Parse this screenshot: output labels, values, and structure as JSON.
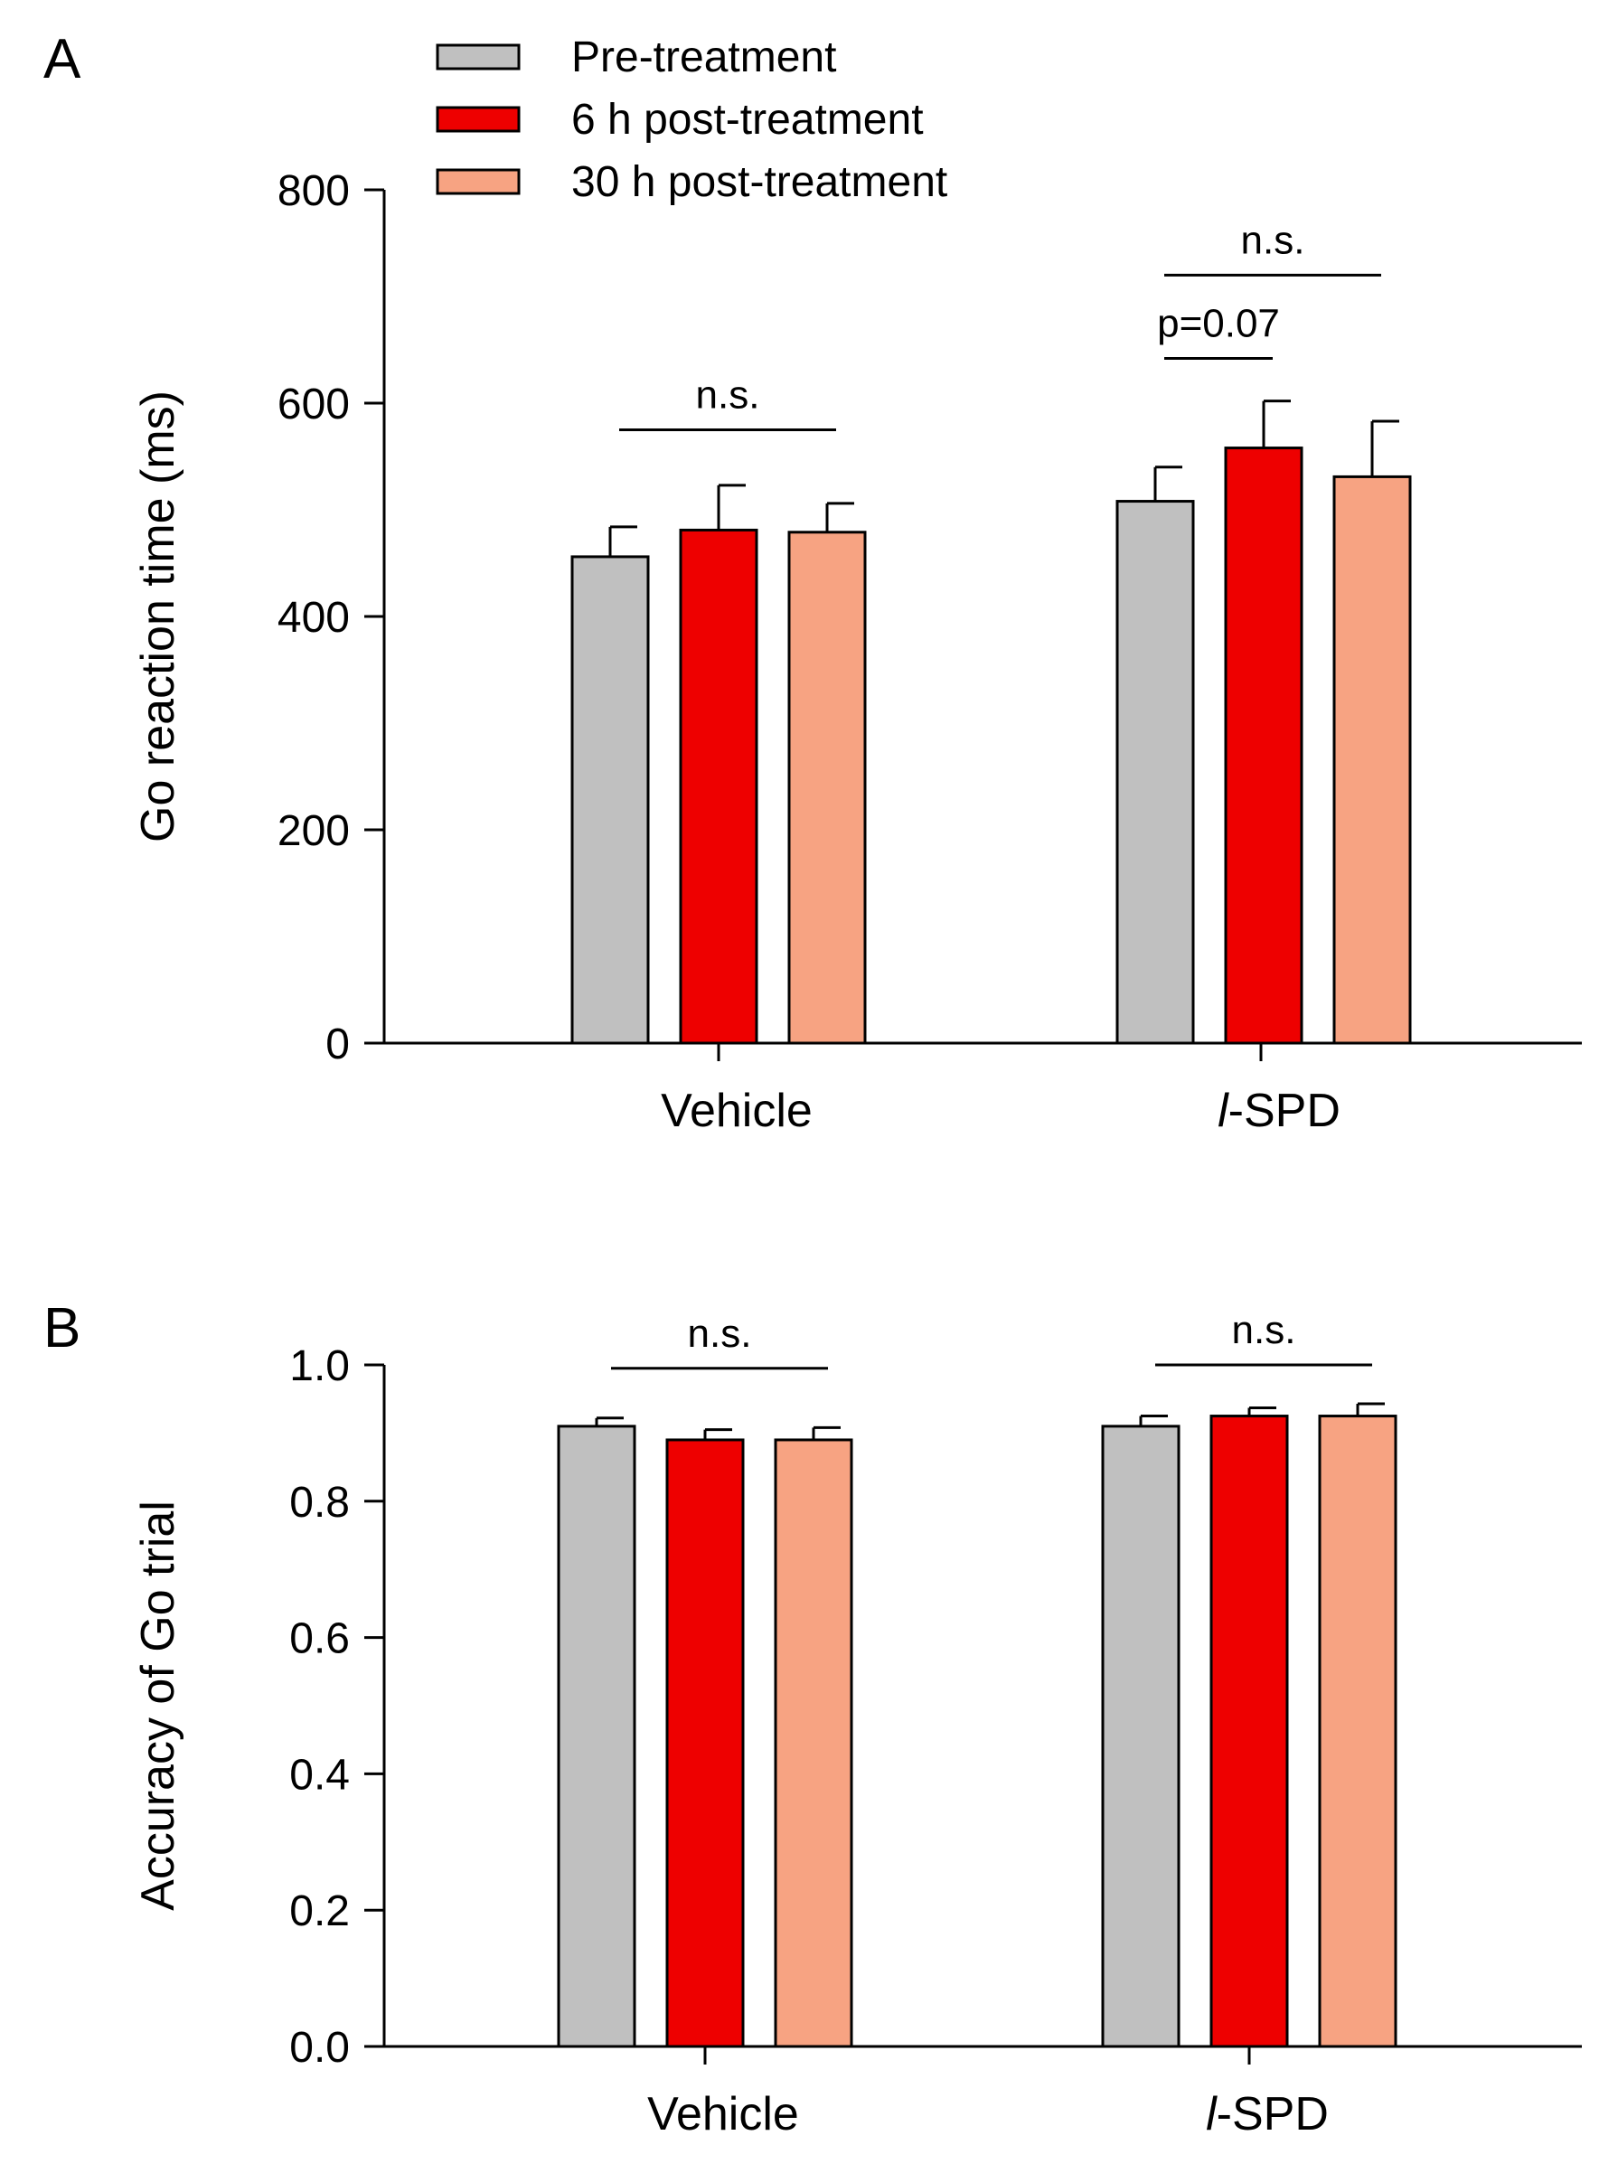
{
  "legend": [
    {
      "name": "Pre-treatment",
      "color": "#c0c0c0"
    },
    {
      "name": "6 h post-treatment",
      "color": "#ee0000"
    },
    {
      "name": "30 h post-treatment",
      "color": "#f7a382"
    }
  ],
  "chart_data": [
    {
      "panel": "A",
      "type": "bar",
      "ylabel": "Go reaction time  (ms)",
      "ylim": [
        0,
        800
      ],
      "yticks": [
        0,
        200,
        400,
        600,
        800
      ],
      "categories": [
        "Vehicle",
        "l-SPD"
      ],
      "series": [
        {
          "name": "Pre-treatment",
          "values": [
            456,
            508
          ],
          "errors": [
            28,
            32
          ]
        },
        {
          "name": "6 h post-treatment",
          "values": [
            481,
            558
          ],
          "errors": [
            42,
            44
          ]
        },
        {
          "name": "30 h post-treatment",
          "values": [
            479,
            531
          ],
          "errors": [
            27,
            52
          ]
        }
      ],
      "annotations": [
        {
          "text": "n.s.",
          "category": 0,
          "from_series": 0,
          "to_series": 2,
          "y": 575
        },
        {
          "text": "p=0.07",
          "category": 1,
          "from_series": 0,
          "to_series": 1,
          "y": 642
        },
        {
          "text": "n.s.",
          "category": 1,
          "from_series": 0,
          "to_series": 2,
          "y": 720
        }
      ]
    },
    {
      "panel": "B",
      "type": "bar",
      "ylabel": "Accuracy of Go trial",
      "ylim": [
        0,
        1.0
      ],
      "yticks": [
        0.0,
        0.2,
        0.4,
        0.6,
        0.8,
        1.0
      ],
      "categories": [
        "Vehicle",
        "l-SPD"
      ],
      "series": [
        {
          "name": "Pre-treatment",
          "values": [
            0.91,
            0.91
          ],
          "errors": [
            0.012,
            0.015
          ]
        },
        {
          "name": "6 h post-treatment",
          "values": [
            0.89,
            0.925
          ],
          "errors": [
            0.015,
            0.012
          ]
        },
        {
          "name": "30 h post-treatment",
          "values": [
            0.89,
            0.925
          ],
          "errors": [
            0.018,
            0.018
          ]
        }
      ],
      "annotations": [
        {
          "text": "n.s.",
          "category": 0,
          "from_series": 0,
          "to_series": 2,
          "y": 0.995
        },
        {
          "text": "n.s.",
          "category": 1,
          "from_series": 0,
          "to_series": 2,
          "y": 1.0
        }
      ]
    }
  ]
}
